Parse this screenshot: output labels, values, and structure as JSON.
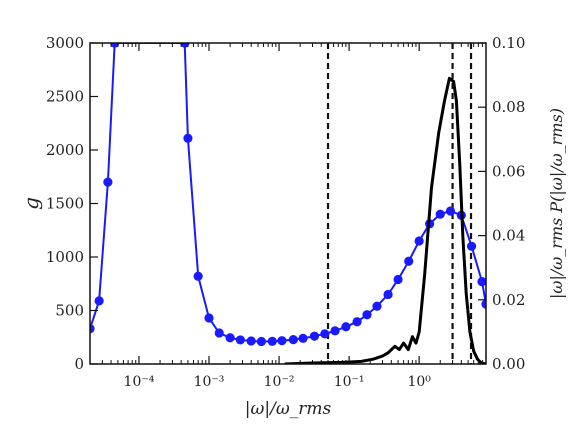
{
  "chart_data": {
    "type": "line",
    "xlabel": "|ω|/ω_rms",
    "ylabel_left": "g",
    "ylabel_right": "|ω|/ω_rms P(|ω|/ω_rms)",
    "xscale": "log",
    "xlim": [
      2e-05,
      9
    ],
    "ylim_left": [
      0,
      3000
    ],
    "ylim_right": [
      0,
      0.1
    ],
    "xticks": [
      {
        "value": 0.0001,
        "label": "10⁻⁴"
      },
      {
        "value": 0.001,
        "label": "10⁻³"
      },
      {
        "value": 0.01,
        "label": "10⁻²"
      },
      {
        "value": 0.1,
        "label": "10⁻¹"
      },
      {
        "value": 1,
        "label": "10⁰"
      }
    ],
    "yticks_left": [
      "0",
      "500",
      "1000",
      "1500",
      "2000",
      "2500",
      "3000"
    ],
    "yticks_right": [
      "0.00",
      "0.02",
      "0.04",
      "0.06",
      "0.08",
      "0.10"
    ],
    "vlines": [
      0.05,
      3.0,
      5.5
    ],
    "series": [
      {
        "axis": "left",
        "color": "#1a1aff",
        "marker": "circle",
        "points": [
          [
            2e-05,
            330
          ],
          [
            2.7e-05,
            590
          ],
          [
            3.6e-05,
            1700
          ],
          [
            4.5e-05,
            3000
          ],
          [
            0.00045,
            3000
          ],
          [
            0.0005,
            2110
          ],
          [
            0.0007,
            820
          ],
          [
            0.001,
            430
          ],
          [
            0.0014,
            290
          ],
          [
            0.002,
            245
          ],
          [
            0.0028,
            225
          ],
          [
            0.004,
            215
          ],
          [
            0.0056,
            210
          ],
          [
            0.008,
            212
          ],
          [
            0.011,
            218
          ],
          [
            0.016,
            228
          ],
          [
            0.022,
            240
          ],
          [
            0.032,
            260
          ],
          [
            0.045,
            282
          ],
          [
            0.063,
            310
          ],
          [
            0.09,
            348
          ],
          [
            0.13,
            395
          ],
          [
            0.18,
            460
          ],
          [
            0.25,
            540
          ],
          [
            0.36,
            650
          ],
          [
            0.5,
            790
          ],
          [
            0.71,
            960
          ],
          [
            1.0,
            1150
          ],
          [
            1.41,
            1310
          ],
          [
            2.0,
            1400
          ],
          [
            2.8,
            1430
          ],
          [
            4.0,
            1390
          ],
          [
            5.6,
            1100
          ],
          [
            7.9,
            770
          ],
          [
            9.0,
            560
          ]
        ]
      },
      {
        "axis": "right",
        "color": "#000000",
        "marker": "none",
        "points": [
          [
            0.012,
            0
          ],
          [
            0.03,
            0.0003
          ],
          [
            0.08,
            0.0005
          ],
          [
            0.15,
            0.0008
          ],
          [
            0.22,
            0.0015
          ],
          [
            0.3,
            0.0025
          ],
          [
            0.36,
            0.0035
          ],
          [
            0.45,
            0.0055
          ],
          [
            0.52,
            0.0045
          ],
          [
            0.6,
            0.0065
          ],
          [
            0.7,
            0.0045
          ],
          [
            0.8,
            0.0085
          ],
          [
            0.9,
            0.0065
          ],
          [
            1.0,
            0.01
          ],
          [
            1.2,
            0.028
          ],
          [
            1.5,
            0.055
          ],
          [
            1.9,
            0.072
          ],
          [
            2.3,
            0.082
          ],
          [
            2.7,
            0.089
          ],
          [
            3.1,
            0.088
          ],
          [
            3.4,
            0.082
          ],
          [
            3.8,
            0.062
          ],
          [
            4.2,
            0.04
          ],
          [
            4.7,
            0.022
          ],
          [
            5.3,
            0.01
          ],
          [
            6.0,
            0.004
          ],
          [
            6.8,
            0.0015
          ],
          [
            7.6,
            0.0004
          ],
          [
            9.0,
            0.0
          ]
        ]
      }
    ]
  }
}
